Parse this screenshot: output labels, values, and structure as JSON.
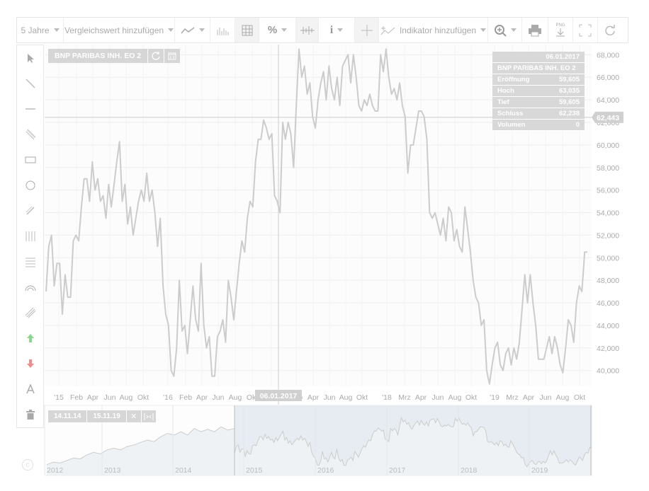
{
  "toolbar": {
    "period": "5 Jahre",
    "compare": "Vergleichswert hinzufügen",
    "percent": "%",
    "info": "i",
    "indicator": "Indikator hinzufügen",
    "png": "PNG"
  },
  "left_tools": [
    {
      "icon": "pointer-icon"
    },
    {
      "icon": "trendline-icon"
    },
    {
      "icon": "horizontal-line-icon"
    },
    {
      "icon": "channel-icon"
    },
    {
      "icon": "rectangle-icon"
    },
    {
      "icon": "circle-icon"
    },
    {
      "icon": "pen-icon"
    },
    {
      "icon": "vertical-lines-icon"
    },
    {
      "icon": "horizontal-lines-icon"
    },
    {
      "icon": "arc-icon"
    },
    {
      "icon": "parallel-lines-icon"
    },
    {
      "icon": "arrow-up-icon",
      "color": "#8fd48f"
    },
    {
      "icon": "arrow-down-icon",
      "color": "#f08c8c"
    },
    {
      "icon": "text-icon"
    },
    {
      "icon": "trash-icon"
    }
  ],
  "chart_title": "BNP PARIBAS INH. EO 2",
  "crosshair": {
    "date_label": "06.01.2017",
    "price_label": "62,443"
  },
  "info_panel": {
    "date": "06.01.2017",
    "name": "BNP PARIBAS INH. EO 2",
    "rows": [
      {
        "label": "Eröffnung",
        "value": "59,605"
      },
      {
        "label": "Hoch",
        "value": "63,035"
      },
      {
        "label": "Tief",
        "value": "59,605"
      },
      {
        "label": "Schluss",
        "value": "62,238"
      },
      {
        "label": "Volumen",
        "value": "0"
      }
    ]
  },
  "navigator": {
    "from": "14.11.14",
    "to": "15.11.19",
    "year_labels": [
      "2012",
      "2013",
      "2014",
      "2015",
      "2016",
      "2017",
      "2018",
      "2019"
    ]
  },
  "colors": {
    "line": "#cccccc",
    "nav_fill": "#e6ecf1",
    "grid": "#eeeeee"
  },
  "chart_data": {
    "type": "line",
    "series": [
      {
        "x": 0,
        "y": 47.0
      },
      {
        "x": 1,
        "y": 51.0
      },
      {
        "x": 2,
        "y": 52.0
      },
      {
        "x": 3,
        "y": 47.5
      },
      {
        "x": 4,
        "y": 49.5
      },
      {
        "x": 5,
        "y": 49.5
      },
      {
        "x": 6,
        "y": 45.0
      },
      {
        "x": 7,
        "y": 48.5
      },
      {
        "x": 8,
        "y": 46.5
      },
      {
        "x": 9,
        "y": 46.5
      },
      {
        "x": 10,
        "y": 51.5
      },
      {
        "x": 11,
        "y": 52.0
      },
      {
        "x": 12,
        "y": 51.5
      },
      {
        "x": 13,
        "y": 54.5
      },
      {
        "x": 14,
        "y": 57.0
      },
      {
        "x": 15,
        "y": 57.0
      },
      {
        "x": 16,
        "y": 55.0
      },
      {
        "x": 17,
        "y": 58.5
      },
      {
        "x": 18,
        "y": 56.0
      },
      {
        "x": 19,
        "y": 57.0
      },
      {
        "x": 20,
        "y": 55.0
      },
      {
        "x": 21,
        "y": 55.5
      },
      {
        "x": 22,
        "y": 53.5
      },
      {
        "x": 23,
        "y": 56.5
      },
      {
        "x": 24,
        "y": 54.5
      },
      {
        "x": 25,
        "y": 56.5
      },
      {
        "x": 26,
        "y": 58.5
      },
      {
        "x": 27,
        "y": 60.3
      },
      {
        "x": 28,
        "y": 55.0
      },
      {
        "x": 29,
        "y": 56.5
      },
      {
        "x": 30,
        "y": 53.0
      },
      {
        "x": 31,
        "y": 54.5
      },
      {
        "x": 32,
        "y": 52.0
      },
      {
        "x": 33,
        "y": 53.5
      },
      {
        "x": 34,
        "y": 55.0
      },
      {
        "x": 35,
        "y": 56.0
      },
      {
        "x": 36,
        "y": 55.0
      },
      {
        "x": 37,
        "y": 57.5
      },
      {
        "x": 38,
        "y": 55.0
      },
      {
        "x": 39,
        "y": 56.0
      },
      {
        "x": 40,
        "y": 54.0
      },
      {
        "x": 41,
        "y": 51.0
      },
      {
        "x": 42,
        "y": 53.5
      },
      {
        "x": 43,
        "y": 47.5
      },
      {
        "x": 44,
        "y": 45.0
      },
      {
        "x": 45,
        "y": 44.0
      },
      {
        "x": 46,
        "y": 40.0
      },
      {
        "x": 47,
        "y": 39.5
      },
      {
        "x": 48,
        "y": 42.0
      },
      {
        "x": 49,
        "y": 48.0
      },
      {
        "x": 50,
        "y": 43.5
      },
      {
        "x": 51,
        "y": 44.0
      },
      {
        "x": 52,
        "y": 41.5
      },
      {
        "x": 53,
        "y": 44.5
      },
      {
        "x": 54,
        "y": 47.5
      },
      {
        "x": 55,
        "y": 44.5
      },
      {
        "x": 56,
        "y": 43.5
      },
      {
        "x": 57,
        "y": 49.5
      },
      {
        "x": 58,
        "y": 44.0
      },
      {
        "x": 59,
        "y": 42.0
      },
      {
        "x": 60,
        "y": 43.0
      },
      {
        "x": 61,
        "y": 39.5
      },
      {
        "x": 62,
        "y": 39.5
      },
      {
        "x": 63,
        "y": 43.0
      },
      {
        "x": 64,
        "y": 43.5
      },
      {
        "x": 65,
        "y": 44.5
      },
      {
        "x": 66,
        "y": 42.5
      },
      {
        "x": 67,
        "y": 48.0
      },
      {
        "x": 68,
        "y": 46.5
      },
      {
        "x": 69,
        "y": 44.5
      },
      {
        "x": 70,
        "y": 47.0
      },
      {
        "x": 71,
        "y": 49.5
      },
      {
        "x": 72,
        "y": 51.5
      },
      {
        "x": 73,
        "y": 50.5
      },
      {
        "x": 74,
        "y": 53.5
      },
      {
        "x": 75,
        "y": 55.0
      },
      {
        "x": 76,
        "y": 54.5
      },
      {
        "x": 77,
        "y": 58.5
      },
      {
        "x": 78,
        "y": 60.5
      },
      {
        "x": 79,
        "y": 60.5
      },
      {
        "x": 80,
        "y": 62.2
      },
      {
        "x": 81,
        "y": 61.5
      },
      {
        "x": 82,
        "y": 60.5
      },
      {
        "x": 83,
        "y": 61.0
      },
      {
        "x": 84,
        "y": 55.5
      },
      {
        "x": 85,
        "y": 55.0
      },
      {
        "x": 86,
        "y": 54.0
      },
      {
        "x": 87,
        "y": 62.0
      },
      {
        "x": 88,
        "y": 60.5
      },
      {
        "x": 89,
        "y": 62.0
      },
      {
        "x": 90,
        "y": 61.0
      },
      {
        "x": 91,
        "y": 58.0
      },
      {
        "x": 92,
        "y": 63.5
      },
      {
        "x": 93,
        "y": 68.5
      },
      {
        "x": 94,
        "y": 66.0
      },
      {
        "x": 95,
        "y": 67.0
      },
      {
        "x": 96,
        "y": 64.5
      },
      {
        "x": 97,
        "y": 65.5
      },
      {
        "x": 98,
        "y": 62.5
      },
      {
        "x": 99,
        "y": 61.5
      },
      {
        "x": 100,
        "y": 64.0
      },
      {
        "x": 101,
        "y": 65.5
      },
      {
        "x": 102,
        "y": 66.5
      },
      {
        "x": 103,
        "y": 64.0
      },
      {
        "x": 104,
        "y": 67.0
      },
      {
        "x": 105,
        "y": 65.0
      },
      {
        "x": 106,
        "y": 64.0
      },
      {
        "x": 107,
        "y": 66.0
      },
      {
        "x": 108,
        "y": 63.5
      },
      {
        "x": 109,
        "y": 67.0
      },
      {
        "x": 110,
        "y": 67.5
      },
      {
        "x": 111,
        "y": 68.0
      },
      {
        "x": 112,
        "y": 65.5
      },
      {
        "x": 113,
        "y": 68.0
      },
      {
        "x": 114,
        "y": 66.0
      },
      {
        "x": 115,
        "y": 63.5
      },
      {
        "x": 116,
        "y": 63.0
      },
      {
        "x": 117,
        "y": 64.0
      },
      {
        "x": 118,
        "y": 63.5
      },
      {
        "x": 119,
        "y": 64.5
      },
      {
        "x": 120,
        "y": 63.5
      },
      {
        "x": 121,
        "y": 63.0
      },
      {
        "x": 122,
        "y": 63.0
      },
      {
        "x": 123,
        "y": 68.0
      },
      {
        "x": 124,
        "y": 66.5
      },
      {
        "x": 125,
        "y": 68.5
      },
      {
        "x": 126,
        "y": 66.0
      },
      {
        "x": 127,
        "y": 64.5
      },
      {
        "x": 128,
        "y": 65.0
      },
      {
        "x": 129,
        "y": 64.0
      },
      {
        "x": 130,
        "y": 65.5
      },
      {
        "x": 131,
        "y": 63.5
      },
      {
        "x": 132,
        "y": 62.5
      },
      {
        "x": 133,
        "y": 57.5
      },
      {
        "x": 134,
        "y": 60.0
      },
      {
        "x": 135,
        "y": 60.0
      },
      {
        "x": 136,
        "y": 61.5
      },
      {
        "x": 137,
        "y": 63.0
      },
      {
        "x": 138,
        "y": 63.0
      },
      {
        "x": 139,
        "y": 62.5
      },
      {
        "x": 140,
        "y": 60.5
      },
      {
        "x": 141,
        "y": 54.0
      },
      {
        "x": 142,
        "y": 53.5
      },
      {
        "x": 143,
        "y": 54.0
      },
      {
        "x": 144,
        "y": 53.0
      },
      {
        "x": 145,
        "y": 52.0
      },
      {
        "x": 146,
        "y": 53.5
      },
      {
        "x": 147,
        "y": 51.5
      },
      {
        "x": 148,
        "y": 54.5
      },
      {
        "x": 149,
        "y": 54.0
      },
      {
        "x": 150,
        "y": 51.5
      },
      {
        "x": 151,
        "y": 52.5
      },
      {
        "x": 152,
        "y": 51.0
      },
      {
        "x": 153,
        "y": 50.5
      },
      {
        "x": 154,
        "y": 54.5
      },
      {
        "x": 155,
        "y": 52.5
      },
      {
        "x": 156,
        "y": 50.5
      },
      {
        "x": 157,
        "y": 48.0
      },
      {
        "x": 158,
        "y": 46.5
      },
      {
        "x": 159,
        "y": 46.0
      },
      {
        "x": 160,
        "y": 44.0
      },
      {
        "x": 161,
        "y": 44.5
      },
      {
        "x": 162,
        "y": 40.0
      },
      {
        "x": 163,
        "y": 38.8
      },
      {
        "x": 164,
        "y": 40.5
      },
      {
        "x": 165,
        "y": 42.0
      },
      {
        "x": 166,
        "y": 42.5
      },
      {
        "x": 167,
        "y": 40.5
      },
      {
        "x": 168,
        "y": 40.0
      },
      {
        "x": 169,
        "y": 41.5
      },
      {
        "x": 170,
        "y": 42.0
      },
      {
        "x": 171,
        "y": 40.5
      },
      {
        "x": 172,
        "y": 42.0
      },
      {
        "x": 173,
        "y": 41.0
      },
      {
        "x": 174,
        "y": 42.5
      },
      {
        "x": 175,
        "y": 45.5
      },
      {
        "x": 176,
        "y": 48.5
      },
      {
        "x": 177,
        "y": 46.0
      },
      {
        "x": 178,
        "y": 48.5
      },
      {
        "x": 179,
        "y": 46.0
      },
      {
        "x": 180,
        "y": 44.0
      },
      {
        "x": 181,
        "y": 41.0
      },
      {
        "x": 182,
        "y": 41.0
      },
      {
        "x": 183,
        "y": 41.0
      },
      {
        "x": 184,
        "y": 42.0
      },
      {
        "x": 185,
        "y": 43.0
      },
      {
        "x": 186,
        "y": 41.5
      },
      {
        "x": 187,
        "y": 43.0
      },
      {
        "x": 188,
        "y": 42.0
      },
      {
        "x": 189,
        "y": 40.5
      },
      {
        "x": 190,
        "y": 39.8
      },
      {
        "x": 191,
        "y": 42.0
      },
      {
        "x": 192,
        "y": 44.5
      },
      {
        "x": 193,
        "y": 44.0
      },
      {
        "x": 194,
        "y": 42.5
      },
      {
        "x": 195,
        "y": 46.0
      },
      {
        "x": 196,
        "y": 47.5
      },
      {
        "x": 197,
        "y": 47.0
      },
      {
        "x": 198,
        "y": 50.5
      },
      {
        "x": 199,
        "y": 50.5
      }
    ],
    "ylim": [
      38.6,
      68.9
    ],
    "y_ticks": [
      "40,000",
      "42,000",
      "44,000",
      "46,000",
      "48,000",
      "50,000",
      "52,000",
      "54,000",
      "56,000",
      "58,000",
      "60,000",
      "62,000",
      "64,000",
      "66,000",
      "68,000"
    ],
    "x_labels": [
      "'15",
      "Feb",
      "Apr",
      "Jun",
      "Aug",
      "Okt",
      "'16",
      "Feb",
      "Apr",
      "Jun",
      "Aug",
      "Okt",
      "'17",
      "Feb",
      "Apr",
      "Jun",
      "Aug",
      "Okt",
      "'18",
      "Mrz",
      "Apr",
      "Jun",
      "Aug",
      "Okt",
      "'19",
      "Mrz",
      "Apr",
      "Jun",
      "Aug",
      "Okt"
    ],
    "grid": true
  }
}
